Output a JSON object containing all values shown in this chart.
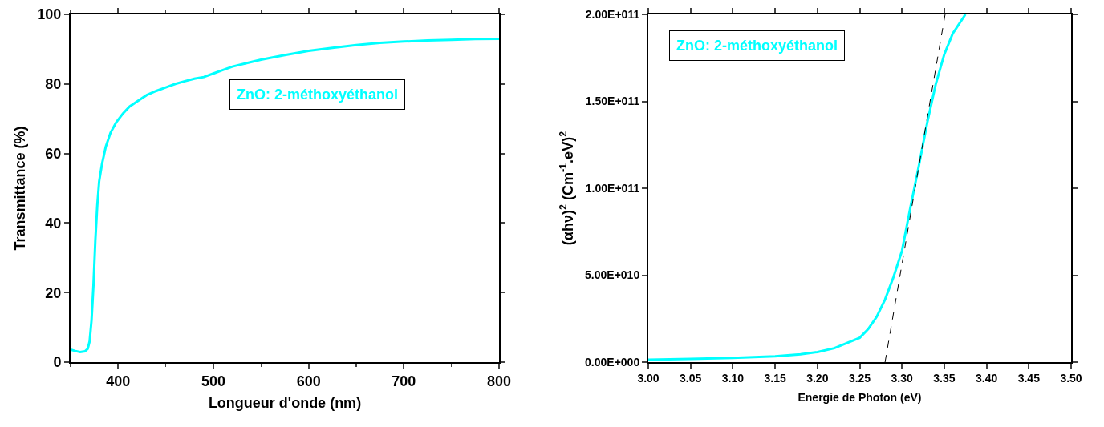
{
  "chart_data": [
    {
      "type": "line",
      "xlabel": "Longueur d'onde (nm)",
      "ylabel": "Transmittance (%)",
      "annotations": [
        "ZnO: 2-méthoxyéthanol"
      ],
      "x": [
        350,
        355,
        360,
        365,
        368,
        370,
        372,
        374,
        376,
        378,
        380,
        383,
        387,
        392,
        398,
        405,
        412,
        420,
        430,
        440,
        450,
        460,
        470,
        480,
        490,
        500,
        510,
        520,
        535,
        550,
        575,
        600,
        625,
        650,
        675,
        700,
        725,
        750,
        775,
        800
      ],
      "series": [
        {
          "color": "#00ffff",
          "values": [
            3.6,
            3.2,
            2.9,
            3.1,
            3.8,
            6,
            12,
            22,
            35,
            45,
            52,
            57,
            62,
            66,
            69,
            71.5,
            73.5,
            75,
            76.8,
            78,
            79,
            80,
            80.8,
            81.5,
            82,
            83,
            84,
            85,
            86,
            87,
            88.3,
            89.5,
            90.4,
            91.2,
            91.8,
            92.2,
            92.5,
            92.7,
            92.9,
            93
          ]
        }
      ],
      "xlim": [
        350,
        800
      ],
      "xticks": [
        400,
        500,
        600,
        700,
        800
      ],
      "ylim": [
        0,
        100
      ],
      "yticks": [
        0,
        20,
        40,
        60,
        80,
        100
      ],
      "grid": false,
      "line_style": "solid",
      "marker": "none"
    },
    {
      "type": "line",
      "xlabel": "Energie de Photon (eV)",
      "ylabel": "(αhν)$^{2}$ (Cm$^{-1}$.eV)$^{2}$",
      "annotations": [
        "ZnO: 2-méthoxyéthanol"
      ],
      "x": [
        3.0,
        3.05,
        3.1,
        3.15,
        3.18,
        3.2,
        3.22,
        3.235,
        3.25,
        3.26,
        3.27,
        3.28,
        3.29,
        3.3,
        3.31,
        3.32,
        3.33,
        3.34,
        3.35,
        3.36,
        3.375
      ],
      "series": [
        {
          "color": "#00ffff",
          "values": [
            1400000000.0,
            1800000000.0,
            2400000000.0,
            3300000000.0,
            4500000000.0,
            5800000000.0,
            8000000000.0,
            11000000000.0,
            14000000000.0,
            19000000000.0,
            26000000000.0,
            36000000000.0,
            49000000000.0,
            64000000000.0,
            89000000000.0,
            113000000000.0,
            138000000000.0,
            160000000000.0,
            177000000000.0,
            189000000000.0,
            200000000000.0
          ]
        },
        {
          "type": "line",
          "color": "#000000",
          "line_style": "dashed",
          "x": [
            3.28,
            3.351
          ],
          "values": [
            0,
            200000000000.0
          ]
        }
      ],
      "xlim": [
        3.0,
        3.5
      ],
      "xticks": [
        {
          "value": 3.0,
          "label": "3.00"
        },
        {
          "value": 3.05,
          "label": "3.05"
        },
        {
          "value": 3.1,
          "label": "3.10"
        },
        {
          "value": 3.15,
          "label": "3.15"
        },
        {
          "value": 3.2,
          "label": "3.20"
        },
        {
          "value": 3.25,
          "label": "3.25"
        },
        {
          "value": 3.3,
          "label": "3.30"
        },
        {
          "value": 3.35,
          "label": "3.35"
        },
        {
          "value": 3.4,
          "label": "3.40"
        },
        {
          "value": 3.45,
          "label": "3.45"
        },
        {
          "value": 3.5,
          "label": "3.50"
        }
      ],
      "ylim": [
        0,
        200000000000.0
      ],
      "yticks": [
        {
          "value": 0,
          "label": "0.00E+000"
        },
        {
          "value": 50000000000.0,
          "label": "5.00E+010"
        },
        {
          "value": 100000000000.0,
          "label": "1.00E+011"
        },
        {
          "value": 150000000000.0,
          "label": "1.50E+011"
        },
        {
          "value": 200000000000.0,
          "label": "2.00E+011"
        }
      ],
      "grid": false,
      "line_style": "solid",
      "marker": "none"
    }
  ]
}
